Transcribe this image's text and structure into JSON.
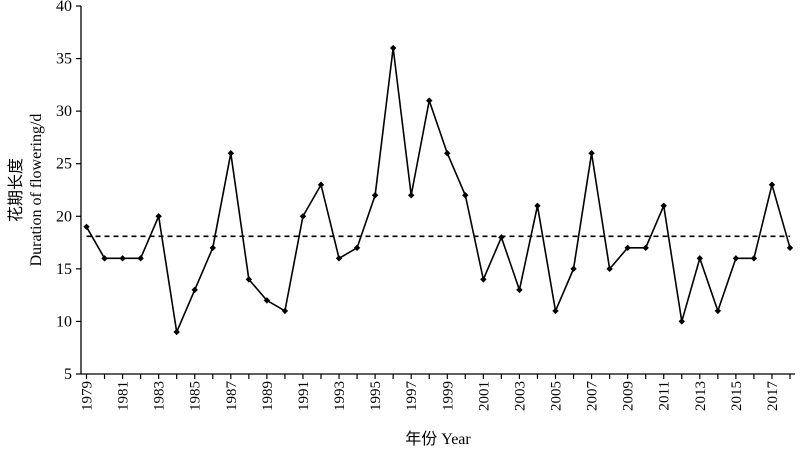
{
  "chart_data": {
    "type": "line",
    "title": "",
    "xlabel": "年份 Year",
    "ylabel": "花期长度 Duration of flowering/d",
    "ylabel_cn": "花期长度",
    "ylabel_en": "Duration of flowering/d",
    "ylim": [
      5,
      40
    ],
    "yticks": [
      "5",
      "10",
      "15",
      "20",
      "25",
      "30",
      "35",
      "40"
    ],
    "x": [
      1979,
      1980,
      1981,
      1982,
      1983,
      1984,
      1985,
      1986,
      1987,
      1988,
      1989,
      1990,
      1991,
      1992,
      1993,
      1994,
      1995,
      1996,
      1997,
      1998,
      1999,
      2000,
      2001,
      2002,
      2003,
      2004,
      2005,
      2006,
      2007,
      2008,
      2009,
      2010,
      2011,
      2012,
      2013,
      2014,
      2015,
      2016,
      2017,
      2018
    ],
    "xtick_labels": [
      "1979",
      "1981",
      "1983",
      "1985",
      "1987",
      "1989",
      "1991",
      "1993",
      "1995",
      "1997",
      "1999",
      "2001",
      "2003",
      "2005",
      "2007",
      "2009",
      "2011",
      "2013",
      "2015",
      "2017"
    ],
    "series": [
      {
        "values": [
          19,
          16,
          16,
          16,
          20,
          9,
          13,
          17,
          26,
          14,
          12,
          11,
          20,
          23,
          16,
          17,
          22,
          36,
          22,
          31,
          26,
          22,
          14,
          18,
          13,
          21,
          11,
          15,
          26,
          15,
          17,
          17,
          21,
          10,
          16,
          11,
          16,
          16,
          23,
          17
        ],
        "color": "#000000",
        "marker": "diamond"
      }
    ],
    "reference_line": {
      "value": 18.1,
      "style": "dashed",
      "color": "#000000"
    },
    "grid": false,
    "legend": "none"
  }
}
